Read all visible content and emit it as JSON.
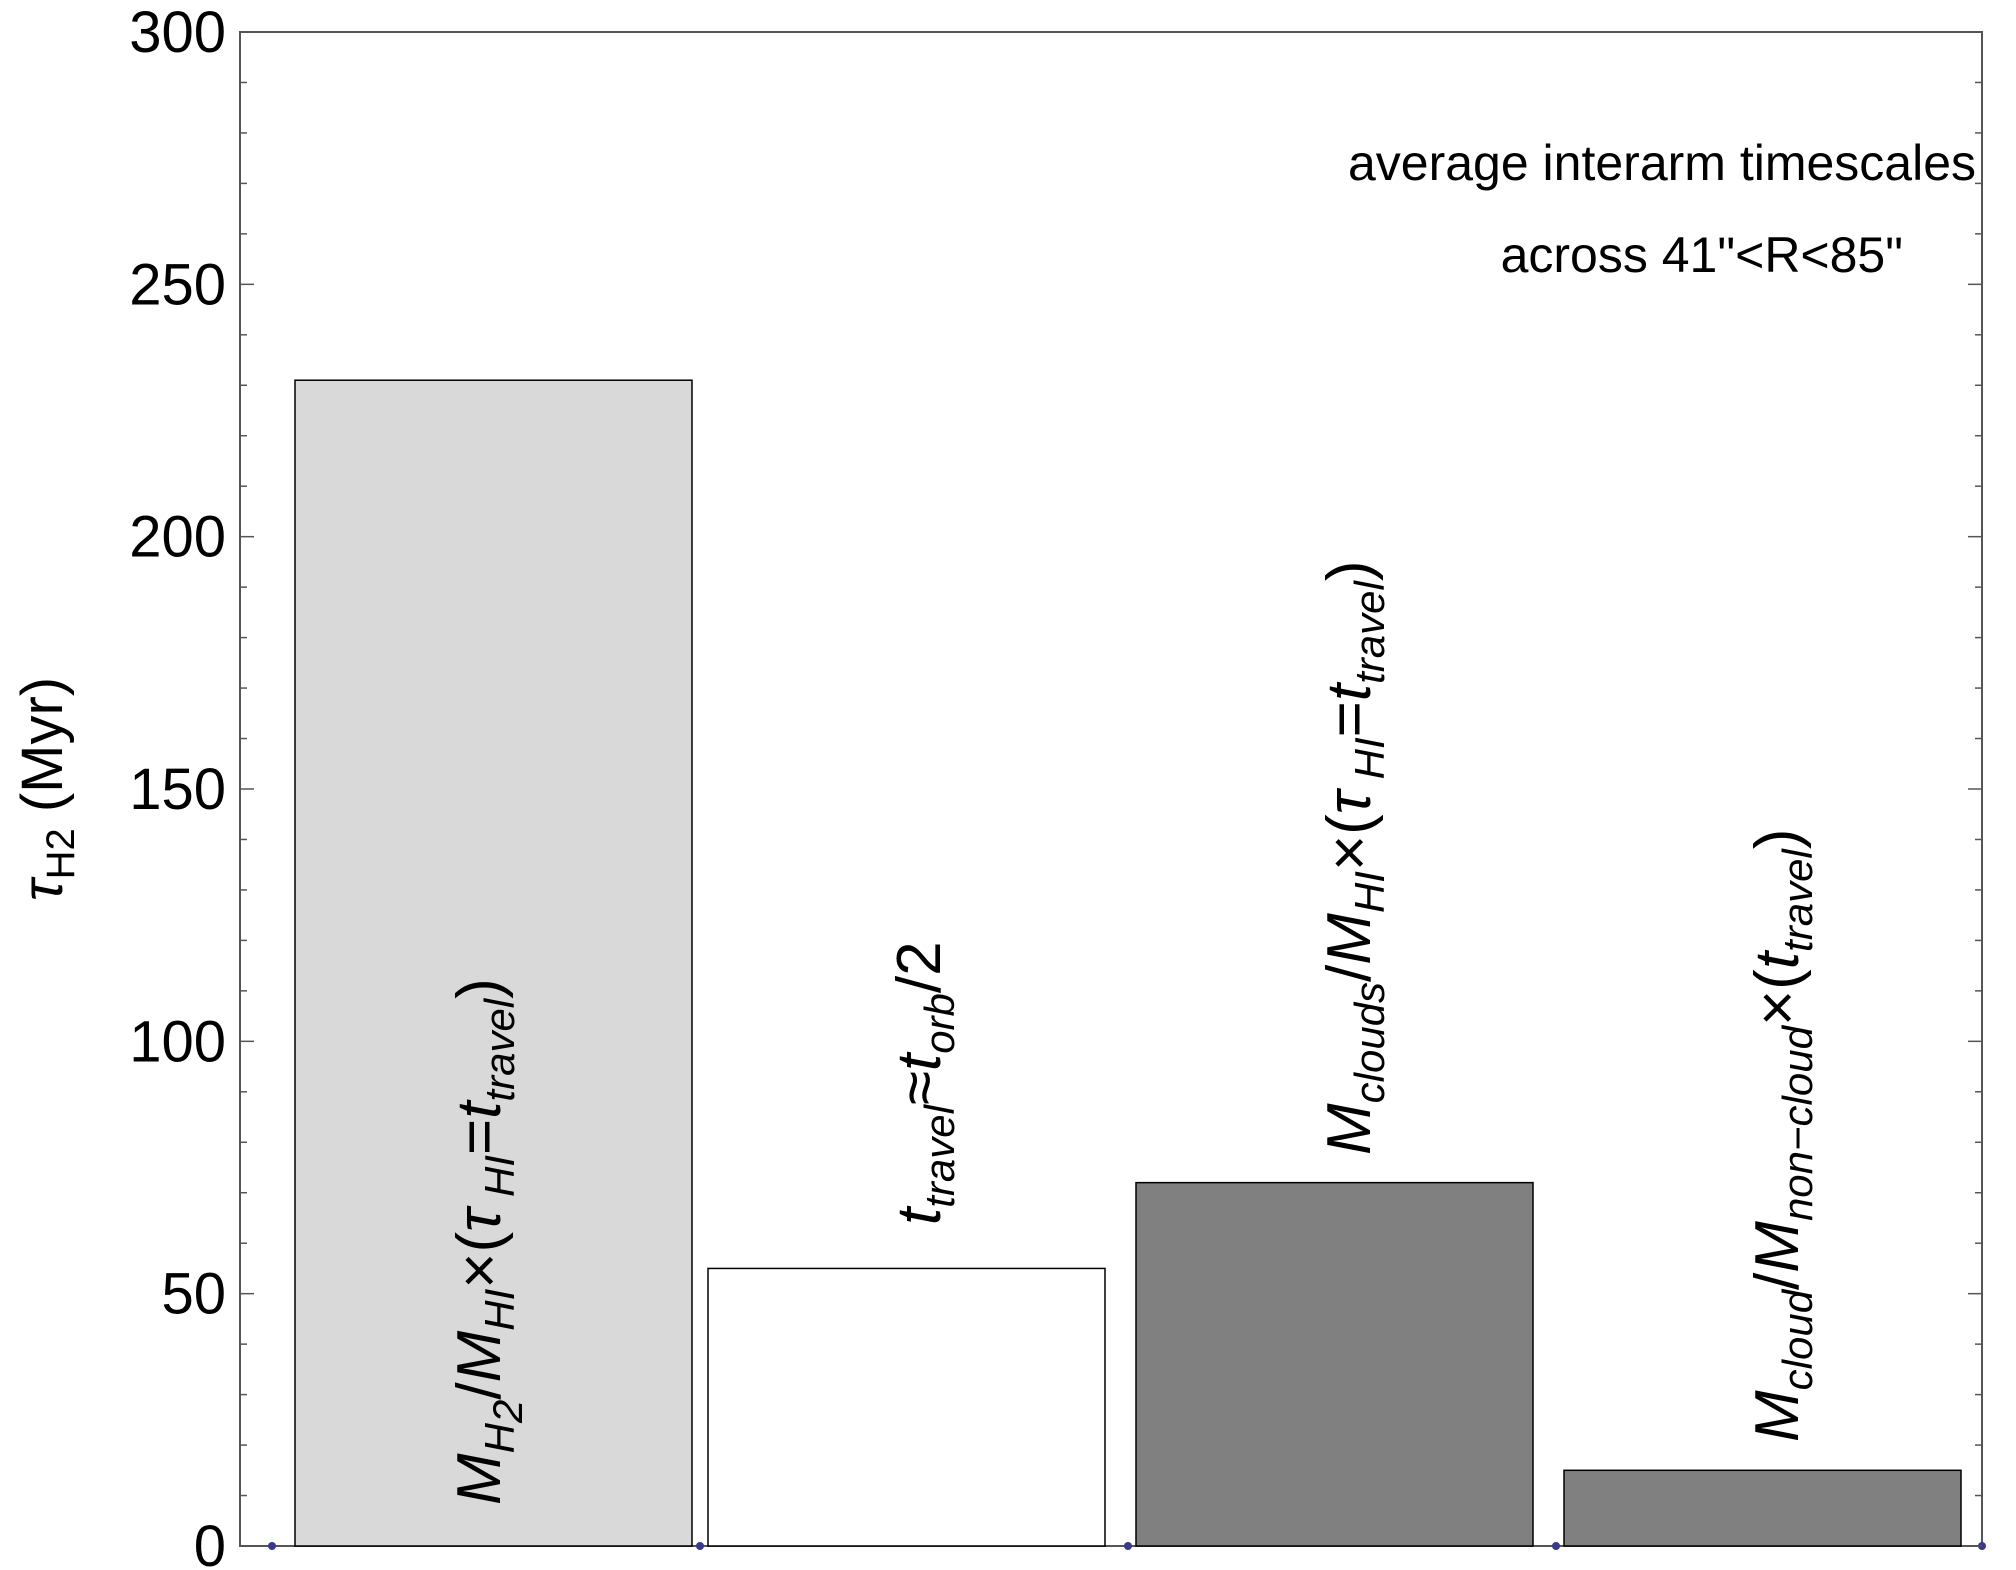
{
  "chart_data": {
    "type": "bar",
    "categories": [
      "M_H2/M_HI×(τ_HI=t_travel)",
      "t_travel≈t_orb/2",
      "M_clouds/M_HI×(τ_HI=t_travel)",
      "M_cloud/M_non-cloud×(t_travel)"
    ],
    "values": [
      231,
      55,
      72,
      15
    ],
    "colors": [
      "#d9d9d9",
      "#ffffff",
      "#808080",
      "#808080"
    ],
    "ylabel": "τ_H2 (Myr)",
    "ylim": [
      0,
      300
    ],
    "yticks": [
      0,
      50,
      100,
      150,
      200,
      250,
      300
    ],
    "ytick_labels": [
      "0",
      "50",
      "100",
      "150",
      "200",
      "250",
      "300"
    ],
    "annotation": [
      "average interarm timescales",
      "across 41\"<R<85\""
    ],
    "grid": false
  }
}
